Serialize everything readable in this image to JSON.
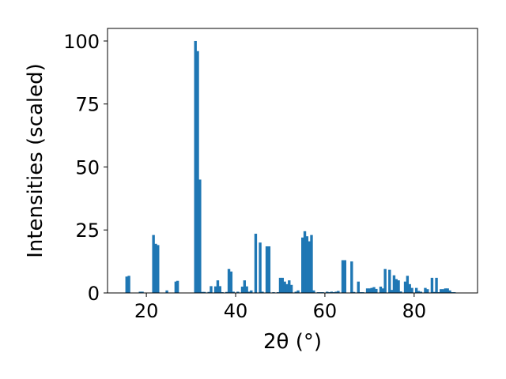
{
  "chart_data": {
    "type": "bar",
    "xlabel": "2θ (°)",
    "ylabel": "Intensities (scaled)",
    "xlim": [
      11.3,
      94.2
    ],
    "ylim": [
      0,
      105
    ],
    "xticks": [
      20,
      40,
      60,
      80
    ],
    "yticks": [
      0,
      25,
      50,
      75,
      100
    ],
    "grid": false,
    "bar_width": 0.6,
    "color": "#1f77b4",
    "x": [
      15.6,
      16.1,
      18.6,
      19.1,
      21.6,
      22.1,
      22.6,
      24.6,
      26.6,
      27.0,
      31.0,
      31.5,
      32.0,
      32.5,
      33.0,
      34.0,
      34.5,
      35.5,
      36.0,
      36.5,
      37.0,
      38.0,
      38.5,
      39.0,
      39.5,
      40.5,
      41.5,
      42.0,
      42.5,
      43.0,
      43.5,
      44.5,
      45.5,
      46.0,
      47.0,
      47.5,
      48.5,
      49.5,
      50.0,
      50.5,
      51.0,
      51.5,
      52.0,
      52.5,
      53.5,
      54.0,
      55.0,
      55.5,
      56.0,
      56.5,
      57.0,
      57.5,
      58.5,
      59.0,
      59.5,
      60.5,
      61.0,
      61.5,
      62.0,
      62.5,
      63.0,
      64.0,
      64.5,
      66.0,
      66.5,
      67.5,
      68.0,
      68.5,
      69.5,
      70.0,
      70.5,
      71.0,
      71.5,
      72.5,
      73.0,
      73.5,
      74.5,
      75.0,
      75.5,
      76.0,
      76.5,
      77.0,
      78.0,
      78.5,
      79.0,
      79.5,
      80.5,
      81.0,
      81.5,
      82.5,
      83.0,
      84.0,
      84.5,
      85.0,
      85.5,
      86.0,
      86.5,
      87.0,
      87.5,
      88.0,
      88.5,
      89.0
    ],
    "values": [
      6.5,
      6.8,
      0.5,
      0.5,
      23,
      19.5,
      19,
      1,
      4.5,
      4.8,
      100,
      96,
      45,
      0.4,
      0.4,
      0.4,
      2.7,
      2.6,
      5,
      2.7,
      0.3,
      0.4,
      9.5,
      8.5,
      0.5,
      0.5,
      2.5,
      5,
      2.6,
      0.5,
      1,
      23.5,
      20,
      0.5,
      18.5,
      18.5,
      0.3,
      0.3,
      6,
      6,
      4.5,
      3.5,
      5,
      3.2,
      0.5,
      1,
      22,
      24.5,
      22.5,
      20.5,
      23,
      1,
      0.3,
      0.3,
      0.3,
      0.5,
      0.3,
      0.5,
      0.3,
      0.5,
      0.8,
      13,
      13,
      12.5,
      0.4,
      4.5,
      0.3,
      0.3,
      1.8,
      1.8,
      2,
      2.3,
      1.6,
      2.5,
      1.8,
      9.5,
      9.2,
      1.2,
      7,
      5.5,
      5,
      0.6,
      4.5,
      6.8,
      3.5,
      2,
      2,
      0.8,
      0.5,
      2,
      1.5,
      6,
      0.4,
      6,
      0.3,
      1.5,
      1.5,
      1.8,
      1.8,
      1,
      0.3,
      0.3
    ]
  }
}
